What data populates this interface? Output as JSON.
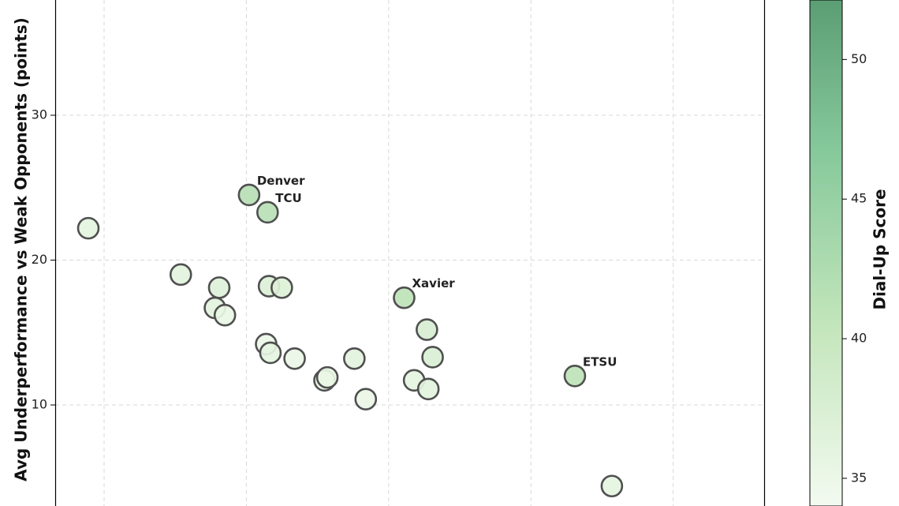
{
  "chart_data": {
    "type": "scatter",
    "title": "",
    "xlabel": "",
    "ylabel": "Avg Underperformance vs Weak Opponents (points)",
    "ylim": [
      2.8,
      37.6
    ],
    "yticks": [
      10,
      20,
      30
    ],
    "grid": true,
    "colorbar": {
      "label": "Dial-Up Score",
      "range": [
        32,
        51.4
      ],
      "ticks": [
        35,
        40,
        45,
        50
      ],
      "colors": [
        "#f3faf0",
        "#c4e6bc",
        "#86c99b",
        "#5c9e74"
      ]
    },
    "points": [
      {
        "x": 0.0,
        "y": 22.2,
        "score": 34.2,
        "label": ""
      },
      {
        "x": 0.65,
        "y": 19.0,
        "score": 34.5,
        "label": ""
      },
      {
        "x": 0.89,
        "y": 16.7,
        "score": 34.3,
        "label": ""
      },
      {
        "x": 0.92,
        "y": 18.1,
        "score": 35.0,
        "label": ""
      },
      {
        "x": 0.96,
        "y": 16.2,
        "score": 33.5,
        "label": ""
      },
      {
        "x": 1.13,
        "y": 24.5,
        "score": 40.2,
        "label": "Denver"
      },
      {
        "x": 1.25,
        "y": 14.2,
        "score": 33.0,
        "label": ""
      },
      {
        "x": 1.26,
        "y": 23.3,
        "score": 40.0,
        "label": "TCU"
      },
      {
        "x": 1.27,
        "y": 18.2,
        "score": 35.3,
        "label": ""
      },
      {
        "x": 1.28,
        "y": 13.6,
        "score": 34.0,
        "label": ""
      },
      {
        "x": 1.36,
        "y": 18.1,
        "score": 35.2,
        "label": ""
      },
      {
        "x": 1.45,
        "y": 13.2,
        "score": 33.2,
        "label": ""
      },
      {
        "x": 1.66,
        "y": 11.7,
        "score": 33.6,
        "label": ""
      },
      {
        "x": 1.68,
        "y": 11.9,
        "score": 33.4,
        "label": ""
      },
      {
        "x": 1.87,
        "y": 13.2,
        "score": 34.3,
        "label": ""
      },
      {
        "x": 1.95,
        "y": 10.4,
        "score": 33.3,
        "label": ""
      },
      {
        "x": 2.22,
        "y": 17.4,
        "score": 39.5,
        "label": "Xavier"
      },
      {
        "x": 2.29,
        "y": 11.7,
        "score": 34.0,
        "label": ""
      },
      {
        "x": 2.38,
        "y": 15.2,
        "score": 36.0,
        "label": ""
      },
      {
        "x": 2.39,
        "y": 11.1,
        "score": 34.5,
        "label": ""
      },
      {
        "x": 2.42,
        "y": 13.3,
        "score": 35.7,
        "label": ""
      },
      {
        "x": 3.42,
        "y": 12.0,
        "score": 39.5,
        "label": "ETSU"
      },
      {
        "x": 3.68,
        "y": 4.4,
        "score": 34.0,
        "label": ""
      }
    ]
  }
}
